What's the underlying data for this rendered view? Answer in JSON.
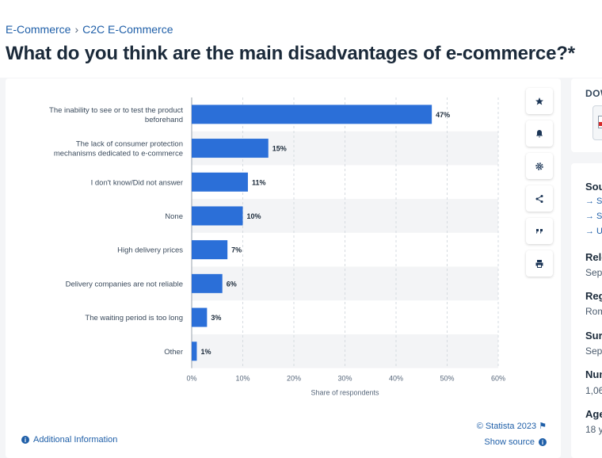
{
  "breadcrumb": {
    "item1": "E-Commerce",
    "separator": "›",
    "item2": "C2C E-Commerce"
  },
  "title": "What do you think are the main disadvantages of e-commerce?*",
  "chart_data": {
    "type": "bar",
    "orientation": "horizontal",
    "categories": [
      [
        "The inability to see or to test the product",
        "beforehand"
      ],
      [
        "The lack of consumer protection",
        "mechanisms dedicated to e-commerce"
      ],
      [
        "I don't know/Did not answer"
      ],
      [
        "None"
      ],
      [
        "High delivery prices"
      ],
      [
        "Delivery companies are not reliable"
      ],
      [
        "The waiting period is too long"
      ],
      [
        "Other"
      ]
    ],
    "values": [
      47,
      15,
      11,
      10,
      7,
      6,
      3,
      1
    ],
    "data_labels": [
      "47%",
      "15%",
      "11%",
      "10%",
      "7%",
      "6%",
      "3%",
      "1%"
    ],
    "xlabel": "Share of respondents",
    "xticks": [
      "0%",
      "10%",
      "20%",
      "30%",
      "40%",
      "50%",
      "60%"
    ],
    "xlim": [
      0,
      60
    ],
    "grid": true,
    "bar_color": "#2b6fd8"
  },
  "tools": {
    "favorite": "star-icon",
    "notify": "bell-icon",
    "settings": "gear-icon",
    "share": "share-icon",
    "cite": "quote-icon",
    "print": "print-icon"
  },
  "footer": {
    "additional_info": "Additional Information",
    "credit": "© Statista 2023",
    "show_source": "Show source"
  },
  "download": {
    "label": "DOWNLOAD"
  },
  "details": {
    "source_head": "Source",
    "source_links": [
      "→ S",
      "→ S",
      "→ U"
    ],
    "release_head": "Release date",
    "release_val": "Sep",
    "region_head": "Region",
    "region_val": "Romania",
    "survey_head": "Survey time period",
    "survey_val": "Sep",
    "number_head": "Number of respondents",
    "number_val": "1,06",
    "age_head": "Age group",
    "age_val": "18 y"
  }
}
